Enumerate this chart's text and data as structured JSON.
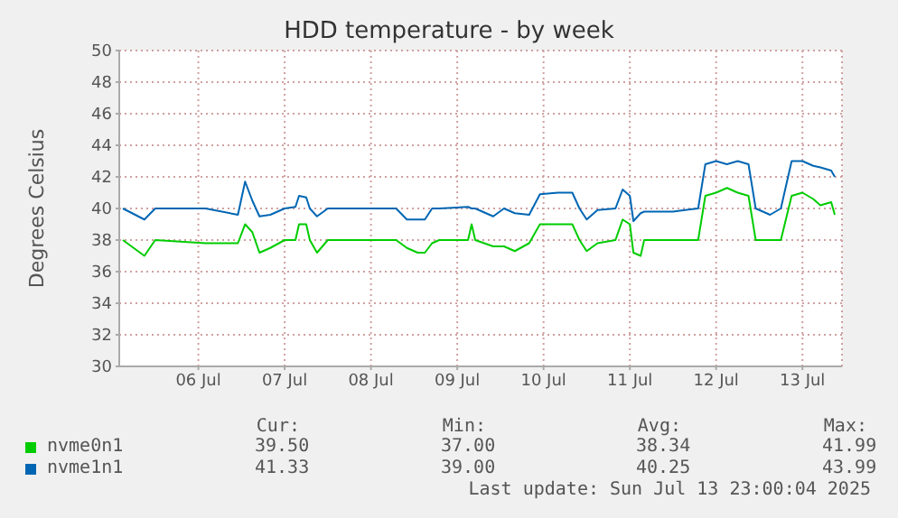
{
  "chart_data": {
    "type": "line",
    "title": "HDD temperature - by week",
    "ylabel": "Degrees Celsius",
    "x": [
      "2025-07-05T15:00",
      "2025-07-05T21:00",
      "2025-07-06T00:00",
      "2025-07-06T14:00",
      "2025-07-06T23:00",
      "2025-07-07T01:00",
      "2025-07-07T03:00",
      "2025-07-07T05:00",
      "2025-07-07T08:00",
      "2025-07-07T12:00",
      "2025-07-07T15:00",
      "2025-07-07T16:00",
      "2025-07-07T18:00",
      "2025-07-07T19:00",
      "2025-07-07T21:00",
      "2025-07-08T00:00",
      "2025-07-08T11:00",
      "2025-07-08T19:00",
      "2025-07-08T22:00",
      "2025-07-09T01:00",
      "2025-07-09T03:00",
      "2025-07-09T05:00",
      "2025-07-09T07:00",
      "2025-07-09T15:00",
      "2025-07-09T16:00",
      "2025-07-09T17:00",
      "2025-07-09T22:00",
      "2025-07-10T01:00",
      "2025-07-10T04:00",
      "2025-07-10T08:00",
      "2025-07-10T11:00",
      "2025-07-10T16:00",
      "2025-07-10T20:00",
      "2025-07-10T22:00",
      "2025-07-11T00:00",
      "2025-07-11T03:00",
      "2025-07-11T08:00",
      "2025-07-11T10:00",
      "2025-07-11T12:00",
      "2025-07-11T13:00",
      "2025-07-11T15:00",
      "2025-07-11T16:00",
      "2025-07-12T00:00",
      "2025-07-12T07:00",
      "2025-07-12T09:00",
      "2025-07-12T12:00",
      "2025-07-12T15:00",
      "2025-07-12T18:00",
      "2025-07-12T21:00",
      "2025-07-12T23:00",
      "2025-07-13T03:00",
      "2025-07-13T06:00",
      "2025-07-13T09:00",
      "2025-07-13T12:00",
      "2025-07-13T15:00",
      "2025-07-13T17:00",
      "2025-07-13T20:00",
      "2025-07-13T21:00"
    ],
    "series": [
      {
        "name": "nvme0n1",
        "color": "#00cc00",
        "values": [
          38,
          37,
          38,
          37.8,
          37.8,
          39,
          38.5,
          37.2,
          37.5,
          38,
          38,
          39,
          39,
          38,
          37.2,
          38,
          38,
          38,
          37.5,
          37.2,
          37.2,
          37.8,
          38,
          38,
          39,
          38,
          37.6,
          37.6,
          37.3,
          37.8,
          39,
          39,
          39,
          38,
          37.3,
          37.8,
          38,
          39.3,
          39,
          37.2,
          37,
          38,
          38,
          38,
          40.8,
          41,
          41.3,
          41,
          40.8,
          38,
          38,
          38,
          40.8,
          41,
          40.6,
          40.2,
          40.4,
          39.6
        ]
      },
      {
        "name": "nvme1n1",
        "color": "#0066b3",
        "values": [
          40,
          39.3,
          40,
          40,
          39.6,
          41.7,
          40.5,
          39.5,
          39.6,
          40,
          40.1,
          40.8,
          40.7,
          40,
          39.5,
          40,
          40,
          40,
          39.3,
          39.3,
          39.3,
          40,
          40,
          40.1,
          40,
          40,
          39.5,
          40,
          39.7,
          39.6,
          40.9,
          41,
          41,
          40,
          39.3,
          39.9,
          40,
          41.2,
          40.8,
          39.2,
          39.7,
          39.8,
          39.8,
          40,
          42.8,
          43,
          42.8,
          43,
          42.8,
          40,
          39.6,
          40,
          43,
          43,
          42.7,
          42.6,
          42.4,
          42
        ]
      }
    ],
    "xlim": [
      "2025-07-05T14:00",
      "2025-07-13T23:00"
    ],
    "xticks": [
      {
        "value": "2025-07-06T12:00",
        "label": "06 Jul"
      },
      {
        "value": "2025-07-07T12:00",
        "label": "07 Jul"
      },
      {
        "value": "2025-07-08T12:00",
        "label": "08 Jul"
      },
      {
        "value": "2025-07-09T12:00",
        "label": "09 Jul"
      },
      {
        "value": "2025-07-10T12:00",
        "label": "10 Jul"
      },
      {
        "value": "2025-07-11T12:00",
        "label": "11 Jul"
      },
      {
        "value": "2025-07-12T12:00",
        "label": "12 Jul"
      },
      {
        "value": "2025-07-13T12:00",
        "label": "13 Jul"
      }
    ],
    "ylim": [
      30,
      50
    ],
    "yticks": [
      30,
      32,
      34,
      36,
      38,
      40,
      42,
      44,
      46,
      48,
      50
    ],
    "grid": true,
    "legend": "bottom",
    "marker": "none",
    "line_style": "solid",
    "annotations": [
      "Cur:",
      "Min:",
      "Avg:",
      "Max:",
      "39.50",
      "37.00",
      "38.34",
      "41.99",
      "41.33",
      "39.00",
      "40.25",
      "43.99",
      "Last update: Sun Jul 13 23:00:04 2025"
    ]
  }
}
